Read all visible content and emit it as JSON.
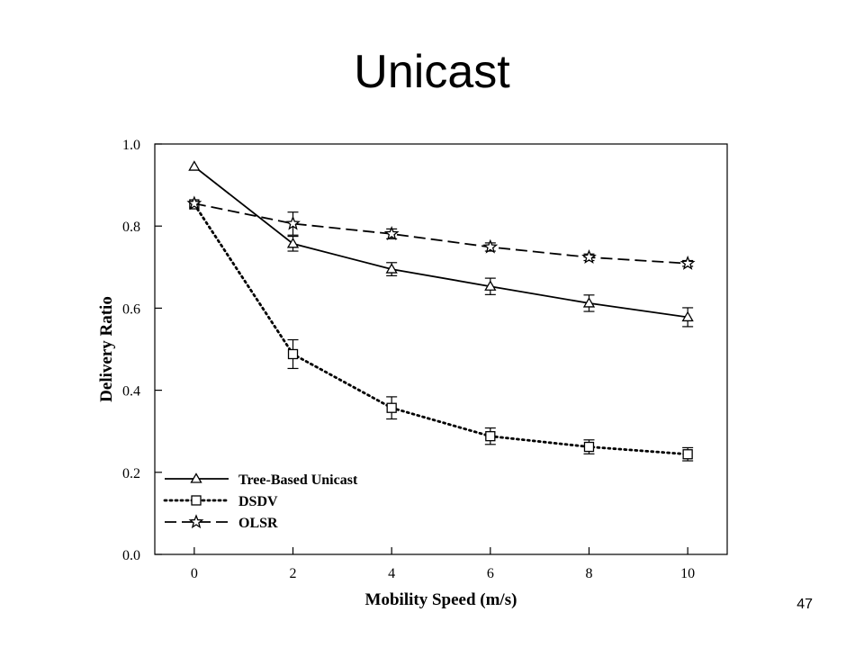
{
  "slide": {
    "title": "Unicast",
    "page_number": "47"
  },
  "chart_data": {
    "type": "line",
    "title": "",
    "xlabel": "Mobility Speed (m/s)",
    "ylabel": "Delivery Ratio",
    "xlim": [
      -0.8,
      10.8
    ],
    "ylim": [
      0.0,
      1.0
    ],
    "x_ticks": [
      "0",
      "2",
      "4",
      "6",
      "8",
      "10"
    ],
    "y_ticks": [
      "0.0",
      "0.2",
      "0.4",
      "0.6",
      "0.8",
      "1.0"
    ],
    "grid": false,
    "legend_position": "bottom-left",
    "x": [
      0,
      2,
      4,
      6,
      8,
      10
    ],
    "series": [
      {
        "name": "Tree-Based Unicast",
        "marker": "triangle",
        "line_style": "solid",
        "values": [
          0.945,
          0.757,
          0.695,
          0.653,
          0.612,
          0.578
        ],
        "errors": [
          0.0,
          0.018,
          0.016,
          0.02,
          0.02,
          0.023
        ]
      },
      {
        "name": "DSDV",
        "marker": "square",
        "line_style": "dotted",
        "values": [
          0.853,
          0.488,
          0.357,
          0.288,
          0.262,
          0.244
        ],
        "errors": [
          0.0,
          0.035,
          0.027,
          0.02,
          0.017,
          0.016
        ]
      },
      {
        "name": "OLSR",
        "marker": "star",
        "line_style": "dashed",
        "values": [
          0.855,
          0.806,
          0.781,
          0.749,
          0.724,
          0.709
        ],
        "errors": [
          0.0,
          0.028,
          0.012,
          0.01,
          0.008,
          0.007
        ]
      }
    ]
  }
}
